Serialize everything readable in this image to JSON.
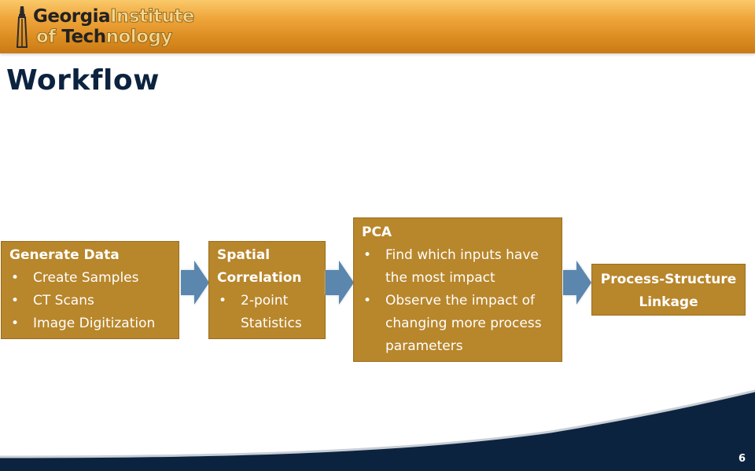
{
  "header": {
    "logo": {
      "line1_dark": "Georgia",
      "line1_light": "Institute",
      "line2_light_a": "of ",
      "line2_dark": "Tech",
      "line2_light_b": "nology"
    }
  },
  "slide": {
    "title": "Workflow",
    "page_number": "6"
  },
  "workflow": {
    "generate": {
      "title": "Generate Data",
      "items": [
        "Create Samples",
        "CT Scans",
        "Image Digitization"
      ]
    },
    "spatial": {
      "title_line1": "Spatial",
      "title_line2": "Correlation",
      "items": [
        "2-point Statistics"
      ]
    },
    "pca": {
      "title": "PCA",
      "items": [
        "Find which inputs have the most impact",
        "Observe the impact of changing more process parameters"
      ]
    },
    "linkage": {
      "title_line1": "Process-Structure",
      "title_line2": "Linkage"
    }
  },
  "colors": {
    "box_fill": "#b8862b",
    "arrow_fill": "#5b86ad",
    "title_color": "#0c2340",
    "footer_navy": "#0c2340",
    "banner_gold": "#e39a2b"
  }
}
